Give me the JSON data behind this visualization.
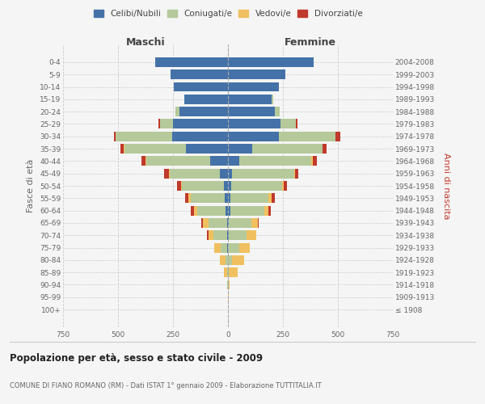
{
  "age_groups": [
    "100+",
    "95-99",
    "90-94",
    "85-89",
    "80-84",
    "75-79",
    "70-74",
    "65-69",
    "60-64",
    "55-59",
    "50-54",
    "45-49",
    "40-44",
    "35-39",
    "30-34",
    "25-29",
    "20-24",
    "15-19",
    "10-14",
    "5-9",
    "0-4"
  ],
  "birth_years": [
    "≤ 1908",
    "1909-1913",
    "1914-1918",
    "1919-1923",
    "1924-1928",
    "1929-1933",
    "1934-1938",
    "1939-1943",
    "1944-1948",
    "1949-1953",
    "1954-1958",
    "1959-1963",
    "1964-1968",
    "1969-1973",
    "1974-1978",
    "1979-1983",
    "1984-1988",
    "1989-1993",
    "1994-1998",
    "1999-2003",
    "2004-2008"
  ],
  "male_celibi": [
    0,
    0,
    0,
    0,
    0,
    3,
    5,
    5,
    10,
    15,
    20,
    35,
    80,
    190,
    255,
    250,
    220,
    200,
    245,
    260,
    330
  ],
  "male_coniugati": [
    0,
    0,
    2,
    5,
    10,
    30,
    60,
    85,
    130,
    155,
    190,
    230,
    290,
    280,
    255,
    60,
    20,
    0,
    0,
    0,
    0
  ],
  "male_vedovi": [
    0,
    0,
    0,
    15,
    25,
    30,
    25,
    25,
    15,
    10,
    5,
    5,
    5,
    5,
    0,
    0,
    0,
    0,
    0,
    0,
    0
  ],
  "male_divorziati": [
    0,
    0,
    0,
    0,
    0,
    0,
    5,
    5,
    15,
    15,
    15,
    20,
    20,
    15,
    10,
    5,
    0,
    0,
    0,
    0,
    0
  ],
  "female_nubili": [
    0,
    0,
    0,
    0,
    0,
    0,
    3,
    5,
    10,
    10,
    15,
    20,
    50,
    110,
    230,
    240,
    215,
    200,
    230,
    260,
    390
  ],
  "female_coniugate": [
    0,
    0,
    2,
    5,
    20,
    50,
    80,
    100,
    155,
    175,
    230,
    280,
    330,
    320,
    260,
    70,
    20,
    5,
    0,
    0,
    0
  ],
  "female_vedove": [
    0,
    2,
    5,
    40,
    55,
    50,
    45,
    30,
    20,
    15,
    10,
    5,
    5,
    0,
    0,
    0,
    0,
    0,
    0,
    0,
    0
  ],
  "female_divorziate": [
    0,
    0,
    0,
    0,
    0,
    0,
    0,
    5,
    10,
    15,
    15,
    15,
    20,
    20,
    20,
    5,
    0,
    0,
    0,
    0,
    0
  ],
  "color_celibi": "#4472a8",
  "color_coniugati": "#b5c99a",
  "color_vedovi": "#f0c060",
  "color_divorziati": "#c0392b",
  "title": "Popolazione per età, sesso e stato civile - 2009",
  "subtitle": "COMUNE DI FIANO ROMANO (RM) - Dati ISTAT 1° gennaio 2009 - Elaborazione TUTTITALIA.IT",
  "ylabel_left": "Fasce di età",
  "ylabel_right": "Anni di nascita",
  "label_maschi": "Maschi",
  "label_femmine": "Femmine",
  "legend_labels": [
    "Celibi/Nubili",
    "Coniugati/e",
    "Vedovi/e",
    "Divorziati/e"
  ],
  "xlim": 750,
  "bg_color": "#f5f5f5"
}
